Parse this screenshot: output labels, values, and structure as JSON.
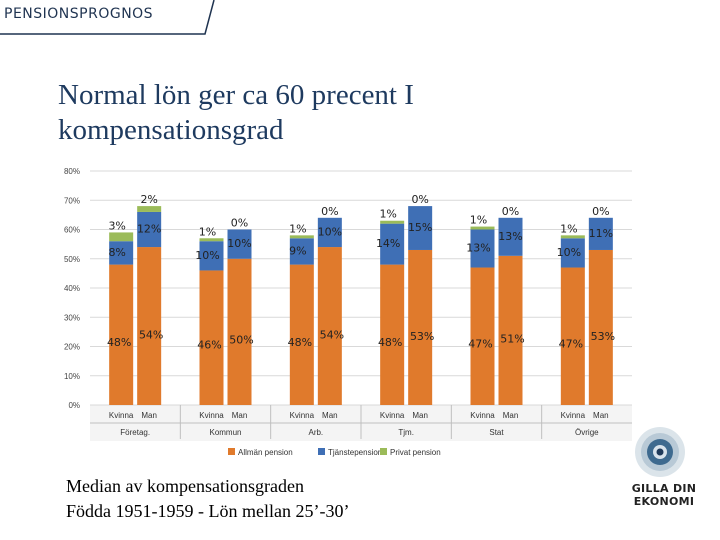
{
  "header": {
    "label": "PENSIONSPROGNOS"
  },
  "slide": {
    "title_line1": "Normal lön ger ca 60 precent I",
    "title_line2": "kompensationsgrad",
    "caption_line1": "Median av kompensationsgraden",
    "caption_line2": "Födda 1951-1959 - Lön mellan 25’-30’"
  },
  "logo": {
    "line1": "GILLA DIN",
    "line2": "EKONOMI"
  },
  "chart_data": {
    "type": "bar",
    "stacked": true,
    "ylim": [
      0,
      80
    ],
    "yticks": [
      "0%",
      "10%",
      "20%",
      "30%",
      "40%",
      "50%",
      "60%",
      "70%",
      "80%"
    ],
    "grid": true,
    "legend_position": "bottom",
    "groups": [
      "Företag.",
      "Kommun",
      "Arb.",
      "Tjm.",
      "Stat",
      "Övrige"
    ],
    "categories": [
      "Kvinna",
      "Man",
      "Kvinna",
      "Man",
      "Kvinna",
      "Man",
      "Kvinna",
      "Man",
      "Kvinna",
      "Man",
      "Kvinna",
      "Man"
    ],
    "series": [
      {
        "name": "Allmän pension",
        "color": "#e07a2c",
        "values": [
          48,
          54,
          46,
          50,
          48,
          54,
          48,
          53,
          47,
          51,
          47,
          53
        ],
        "labels": [
          "48%",
          "54%",
          "46%",
          "50%",
          "48%",
          "54%",
          "48%",
          "53%",
          "47%",
          "51%",
          "47%",
          "53%"
        ]
      },
      {
        "name": "Tjänstepension",
        "color": "#3f6fb5",
        "values": [
          8,
          12,
          10,
          10,
          9,
          10,
          14,
          15,
          13,
          13,
          10,
          11
        ],
        "labels": [
          "8%",
          "12%",
          "10%",
          "10%",
          "9%",
          "10%",
          "14%",
          "15%",
          "13%",
          "13%",
          "10%",
          "11%"
        ]
      },
      {
        "name": "Privat pension",
        "color": "#9bbb59",
        "values": [
          3,
          2,
          1,
          0,
          1,
          0,
          1,
          0,
          1,
          0,
          1,
          0
        ],
        "labels": [
          "3%",
          "2%",
          "1%",
          "0%",
          "1%",
          "0%",
          "1%",
          "0%",
          "1%",
          "0%",
          "1%",
          "0%"
        ]
      }
    ]
  }
}
